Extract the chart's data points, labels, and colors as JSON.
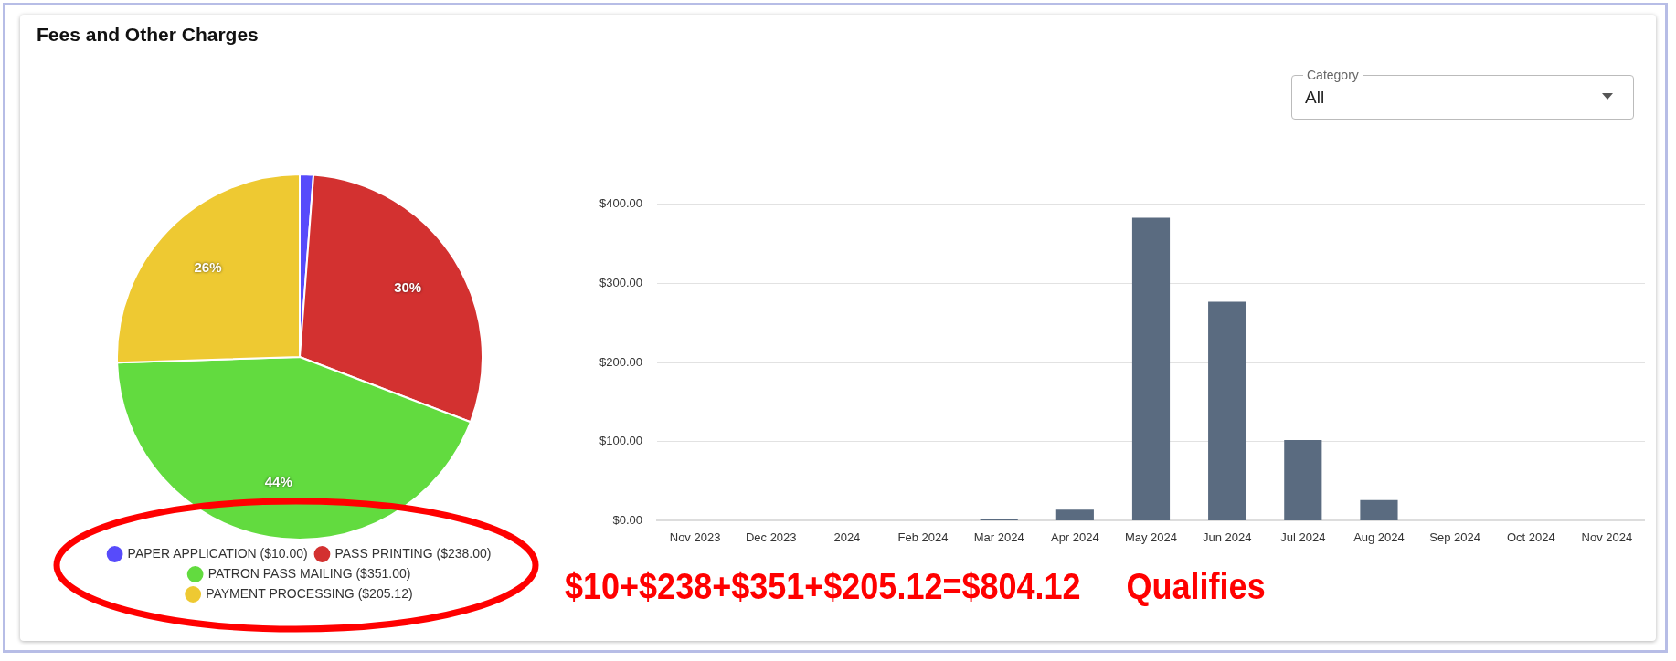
{
  "chart_data": [
    {
      "type": "pie",
      "title": "Fees and Other Charges",
      "categories": [
        "PAPER APPLICATION ($10.00)",
        "PASS PRINTING ($238.00)",
        "PATRON PASS MAILING ($351.00)",
        "PAYMENT PROCESSING ($205.12)"
      ],
      "values": [
        1.2,
        29.6,
        43.7,
        25.5
      ],
      "colors": [
        "#574bfb",
        "#d33130",
        "#62db3f",
        "#eec932"
      ],
      "value_labels": [
        null,
        "30%",
        "44%",
        "26%"
      ],
      "legend": "bottom"
    },
    {
      "type": "bar",
      "categories": [
        "Nov 2023",
        "Dec 2023",
        "2024",
        "Feb 2024",
        "Mar 2024",
        "Apr 2024",
        "May 2024",
        "Jun 2024",
        "Jul 2024",
        "Aug 2024",
        "Sep 2024",
        "Oct 2024",
        "Nov 2024"
      ],
      "values": [
        0,
        0,
        0,
        0,
        2,
        14,
        383,
        277,
        102,
        26,
        0,
        0,
        0
      ],
      "color": "#5a6b80",
      "ylim": [
        0,
        400
      ],
      "yticks": [
        {
          "value": 0,
          "label": "$0.00"
        },
        {
          "value": 100,
          "label": "$100.00"
        },
        {
          "value": 200,
          "label": "$200.00"
        },
        {
          "value": 300,
          "label": "$300.00"
        },
        {
          "value": 400,
          "label": "$400.00"
        }
      ],
      "grid": "y",
      "annotations": [
        "Category",
        "All",
        "$10+$238+$351+$205.12=$804.12     Qualifies"
      ]
    }
  ]
}
